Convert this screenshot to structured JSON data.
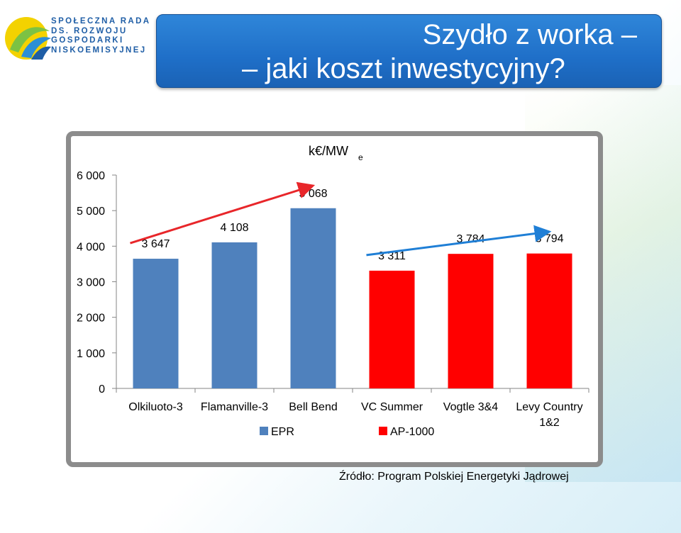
{
  "logo": {
    "lines": [
      "SPOŁECZNA RADA",
      "DS. ROZWOJU",
      "GOSPODARKI",
      "NISKOEMISYJNEJ"
    ]
  },
  "title": {
    "line1": "Szydło z worka –",
    "line2": "– jaki koszt inwestycyjny?"
  },
  "source": "Źródło: Program Polskiej Energetyki Jądrowej",
  "chart_data": {
    "type": "bar",
    "unit_label": "k€/MW",
    "unit_subscript": "e",
    "categories": [
      "Olkiluoto-3",
      "Flamanville-3",
      "Bell Bend",
      "VC Summer",
      "Vogtle 3&4",
      "Levy Country 1&2"
    ],
    "values": [
      3647,
      4108,
      5068,
      3311,
      3784,
      3794
    ],
    "value_labels": [
      "3 647",
      "4 108",
      "5 068",
      "3 311",
      "3 784",
      "3 794"
    ],
    "groups": [
      "EPR",
      "EPR",
      "EPR",
      "AP-1000",
      "AP-1000",
      "AP-1000"
    ],
    "ylim": [
      0,
      6000
    ],
    "yticks": [
      0,
      1000,
      2000,
      3000,
      4000,
      5000,
      6000
    ],
    "ytick_labels": [
      "0",
      "1 000",
      "2 000",
      "3 000",
      "4 000",
      "5 000",
      "6 000"
    ],
    "legend": [
      {
        "name": "EPR",
        "color": "#4f81bd"
      },
      {
        "name": "AP-1000",
        "color": "#ff0000"
      }
    ],
    "legend_position": "bottom",
    "grid": false,
    "trend_arrows": [
      {
        "from": "Olkiluoto-3",
        "to": "Bell Bend",
        "color": "#e8262a"
      },
      {
        "from": "VC Summer",
        "to": "Levy Country 1&2",
        "color": "#1f7fd6"
      }
    ]
  }
}
